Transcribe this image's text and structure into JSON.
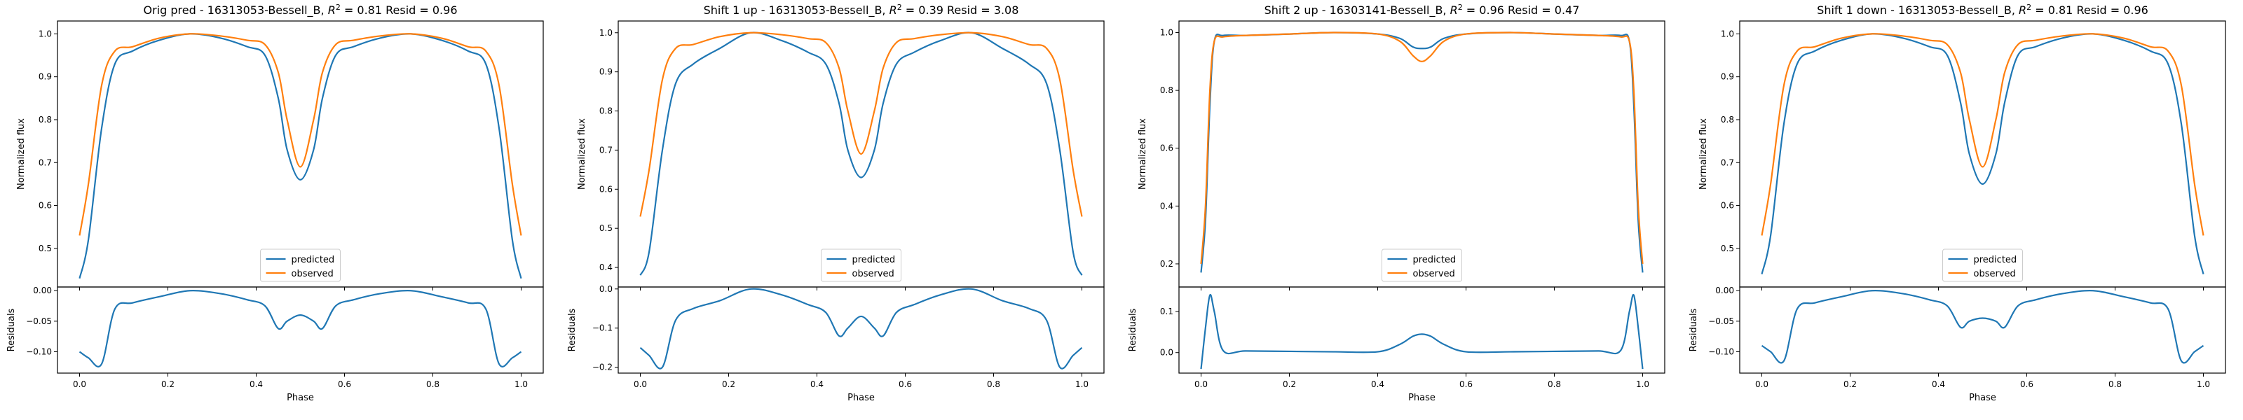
{
  "chart_data": [
    {
      "type": "line",
      "title_prefix": "Orig pred - 16313053-Bessell_B, ",
      "r2": "0.81",
      "resid_text": " Resid = 0.96",
      "xlabel": "Phase",
      "ylabel_top": "Normalized flux",
      "ylabel_bottom": "Residuals",
      "xlim": [
        -0.05,
        1.05
      ],
      "xticks": [
        "0.0",
        "0.2",
        "0.4",
        "0.6",
        "0.8",
        "1.0"
      ],
      "top": {
        "ylim": [
          0.41,
          1.03
        ],
        "yticks": [
          0.5,
          0.6,
          0.7,
          0.8,
          0.9,
          1.0
        ],
        "ytick_labels": [
          "0.5",
          "0.6",
          "0.7",
          "0.8",
          "0.9",
          "1.0"
        ]
      },
      "bottom": {
        "ylim": [
          -0.135,
          0.006
        ],
        "yticks": [
          0.0,
          -0.05,
          -0.1
        ],
        "ytick_labels": [
          "0.00",
          "−0.05",
          "−0.10"
        ]
      },
      "x": [
        0,
        0.02,
        0.05,
        0.08,
        0.12,
        0.18,
        0.25,
        0.32,
        0.38,
        0.42,
        0.45,
        0.47,
        0.5,
        0.53,
        0.55,
        0.58,
        0.62,
        0.68,
        0.75,
        0.82,
        0.88,
        0.92,
        0.95,
        0.98,
        1.0
      ],
      "series": [
        {
          "name": "predicted",
          "color": "#1f77b4",
          "values": [
            0.43,
            0.52,
            0.78,
            0.93,
            0.96,
            0.985,
            1.0,
            0.99,
            0.97,
            0.95,
            0.85,
            0.73,
            0.66,
            0.73,
            0.85,
            0.95,
            0.97,
            0.99,
            1.0,
            0.985,
            0.96,
            0.93,
            0.78,
            0.52,
            0.43
          ]
        },
        {
          "name": "observed",
          "color": "#ff7f0e",
          "values": [
            0.53,
            0.65,
            0.88,
            0.96,
            0.97,
            0.99,
            1.0,
            0.995,
            0.985,
            0.975,
            0.91,
            0.8,
            0.69,
            0.8,
            0.91,
            0.975,
            0.985,
            0.995,
            1.0,
            0.99,
            0.97,
            0.96,
            0.88,
            0.65,
            0.53
          ]
        }
      ],
      "residuals": {
        "color": "#1f77b4",
        "values": [
          -0.1,
          -0.11,
          -0.12,
          -0.03,
          -0.02,
          -0.01,
          0.0,
          -0.005,
          -0.015,
          -0.025,
          -0.062,
          -0.05,
          -0.04,
          -0.05,
          -0.062,
          -0.025,
          -0.015,
          -0.005,
          0.0,
          -0.01,
          -0.02,
          -0.03,
          -0.12,
          -0.11,
          -0.1
        ]
      },
      "legend": [
        "predicted",
        "observed"
      ]
    },
    {
      "type": "line",
      "title_prefix": "Shift 1 up - 16313053-Bessell_B, ",
      "r2": "0.39",
      "resid_text": " Resid = 3.08",
      "xlabel": "Phase",
      "ylabel_top": "Normalized flux",
      "ylabel_bottom": "Residuals",
      "xlim": [
        -0.05,
        1.05
      ],
      "xticks": [
        "0.0",
        "0.2",
        "0.4",
        "0.6",
        "0.8",
        "1.0"
      ],
      "top": {
        "ylim": [
          0.35,
          1.03
        ],
        "yticks": [
          0.4,
          0.5,
          0.6,
          0.7,
          0.8,
          0.9,
          1.0
        ],
        "ytick_labels": [
          "0.4",
          "0.5",
          "0.6",
          "0.7",
          "0.8",
          "0.9",
          "1.0"
        ]
      },
      "bottom": {
        "ylim": [
          -0.215,
          0.005
        ],
        "yticks": [
          0.0,
          -0.1,
          -0.2
        ],
        "ytick_labels": [
          "0.0",
          "−0.1",
          "−0.2"
        ]
      },
      "x": [
        0,
        0.02,
        0.05,
        0.08,
        0.12,
        0.18,
        0.25,
        0.32,
        0.38,
        0.42,
        0.45,
        0.47,
        0.5,
        0.53,
        0.55,
        0.58,
        0.62,
        0.68,
        0.75,
        0.82,
        0.88,
        0.92,
        0.95,
        0.98,
        1.0
      ],
      "series": [
        {
          "name": "predicted",
          "color": "#1f77b4",
          "values": [
            0.38,
            0.44,
            0.7,
            0.87,
            0.92,
            0.96,
            1.0,
            0.98,
            0.95,
            0.92,
            0.82,
            0.7,
            0.63,
            0.7,
            0.82,
            0.92,
            0.95,
            0.98,
            1.0,
            0.96,
            0.92,
            0.87,
            0.7,
            0.44,
            0.38
          ]
        },
        {
          "name": "observed",
          "color": "#ff7f0e",
          "values": [
            0.53,
            0.65,
            0.88,
            0.96,
            0.97,
            0.99,
            1.0,
            0.995,
            0.985,
            0.975,
            0.91,
            0.8,
            0.69,
            0.8,
            0.91,
            0.975,
            0.985,
            0.995,
            1.0,
            0.99,
            0.97,
            0.96,
            0.88,
            0.65,
            0.53
          ]
        }
      ],
      "residuals": {
        "color": "#1f77b4",
        "values": [
          -0.15,
          -0.17,
          -0.2,
          -0.08,
          -0.05,
          -0.03,
          0.0,
          -0.015,
          -0.04,
          -0.06,
          -0.12,
          -0.1,
          -0.07,
          -0.1,
          -0.12,
          -0.06,
          -0.04,
          -0.015,
          0.0,
          -0.03,
          -0.05,
          -0.08,
          -0.2,
          -0.17,
          -0.15
        ]
      },
      "legend": [
        "predicted",
        "observed"
      ]
    },
    {
      "type": "line",
      "title_prefix": "Shift 2 up - 16303141-Bessell_B, ",
      "r2": "0.96",
      "resid_text": " Resid = 0.47",
      "xlabel": "Phase",
      "ylabel_top": "Normalized flux",
      "ylabel_bottom": "Residuals",
      "xlim": [
        -0.05,
        1.05
      ],
      "xticks": [
        "0.0",
        "0.2",
        "0.4",
        "0.6",
        "0.8",
        "1.0"
      ],
      "top": {
        "ylim": [
          0.12,
          1.04
        ],
        "yticks": [
          0.2,
          0.4,
          0.6,
          0.8,
          1.0
        ],
        "ytick_labels": [
          "0.2",
          "0.4",
          "0.6",
          "0.8",
          "1.0"
        ]
      },
      "bottom": {
        "ylim": [
          -0.05,
          0.16
        ],
        "yticks": [
          0.0,
          0.1
        ],
        "ytick_labels": [
          "0.0",
          "0.1"
        ]
      },
      "x": [
        0,
        0.01,
        0.02,
        0.03,
        0.05,
        0.1,
        0.2,
        0.3,
        0.4,
        0.45,
        0.48,
        0.5,
        0.52,
        0.55,
        0.6,
        0.7,
        0.8,
        0.9,
        0.95,
        0.97,
        0.98,
        0.99,
        1.0
      ],
      "series": [
        {
          "name": "predicted",
          "color": "#1f77b4",
          "values": [
            0.17,
            0.35,
            0.75,
            0.97,
            0.99,
            0.99,
            0.995,
            1.0,
            0.995,
            0.98,
            0.95,
            0.945,
            0.95,
            0.98,
            0.995,
            1.0,
            0.995,
            0.99,
            0.99,
            0.97,
            0.75,
            0.35,
            0.17
          ]
        },
        {
          "name": "observed",
          "color": "#ff7f0e",
          "values": [
            0.2,
            0.4,
            0.8,
            0.97,
            0.985,
            0.99,
            0.995,
            1.0,
            0.995,
            0.97,
            0.92,
            0.9,
            0.92,
            0.97,
            0.995,
            1.0,
            0.995,
            0.99,
            0.985,
            0.97,
            0.8,
            0.4,
            0.2
          ]
        }
      ],
      "residuals": {
        "color": "#1f77b4",
        "values": [
          -0.04,
          0.06,
          0.14,
          0.1,
          0.005,
          0.004,
          0.003,
          0.002,
          0.002,
          0.02,
          0.04,
          0.045,
          0.04,
          0.02,
          0.002,
          0.002,
          0.003,
          0.004,
          0.005,
          0.1,
          0.14,
          0.06,
          -0.04
        ]
      },
      "legend": [
        "predicted",
        "observed"
      ]
    },
    {
      "type": "line",
      "title_prefix": "Shift 1 down - 16313053-Bessell_B, ",
      "r2": "0.81",
      "resid_text": " Resid = 0.96",
      "xlabel": "Phase",
      "ylabel_top": "Normalized flux",
      "ylabel_bottom": "Residuals",
      "xlim": [
        -0.05,
        1.05
      ],
      "xticks": [
        "0.0",
        "0.2",
        "0.4",
        "0.6",
        "0.8",
        "1.0"
      ],
      "top": {
        "ylim": [
          0.41,
          1.03
        ],
        "yticks": [
          0.5,
          0.6,
          0.7,
          0.8,
          0.9,
          1.0
        ],
        "ytick_labels": [
          "0.5",
          "0.6",
          "0.7",
          "0.8",
          "0.9",
          "1.0"
        ]
      },
      "bottom": {
        "ylim": [
          -0.135,
          0.006
        ],
        "yticks": [
          0.0,
          -0.05,
          -0.1
        ],
        "ytick_labels": [
          "0.00",
          "−0.05",
          "−0.10"
        ]
      },
      "x": [
        0,
        0.02,
        0.05,
        0.08,
        0.12,
        0.18,
        0.25,
        0.32,
        0.38,
        0.42,
        0.45,
        0.47,
        0.5,
        0.53,
        0.55,
        0.58,
        0.62,
        0.68,
        0.75,
        0.82,
        0.88,
        0.92,
        0.95,
        0.98,
        1.0
      ],
      "series": [
        {
          "name": "predicted",
          "color": "#1f77b4",
          "values": [
            0.44,
            0.53,
            0.79,
            0.93,
            0.96,
            0.985,
            1.0,
            0.99,
            0.97,
            0.95,
            0.84,
            0.72,
            0.65,
            0.72,
            0.84,
            0.95,
            0.97,
            0.99,
            1.0,
            0.985,
            0.96,
            0.93,
            0.79,
            0.53,
            0.44
          ]
        },
        {
          "name": "observed",
          "color": "#ff7f0e",
          "values": [
            0.53,
            0.65,
            0.88,
            0.96,
            0.97,
            0.99,
            1.0,
            0.995,
            0.985,
            0.975,
            0.91,
            0.8,
            0.69,
            0.8,
            0.91,
            0.975,
            0.985,
            0.995,
            1.0,
            0.99,
            0.97,
            0.96,
            0.88,
            0.65,
            0.53
          ]
        }
      ],
      "residuals": {
        "color": "#1f77b4",
        "values": [
          -0.09,
          -0.1,
          -0.115,
          -0.03,
          -0.02,
          -0.01,
          0.0,
          -0.005,
          -0.015,
          -0.025,
          -0.06,
          -0.05,
          -0.045,
          -0.05,
          -0.06,
          -0.025,
          -0.015,
          -0.005,
          0.0,
          -0.01,
          -0.02,
          -0.03,
          -0.115,
          -0.1,
          -0.09
        ]
      },
      "legend": [
        "predicted",
        "observed"
      ]
    }
  ]
}
